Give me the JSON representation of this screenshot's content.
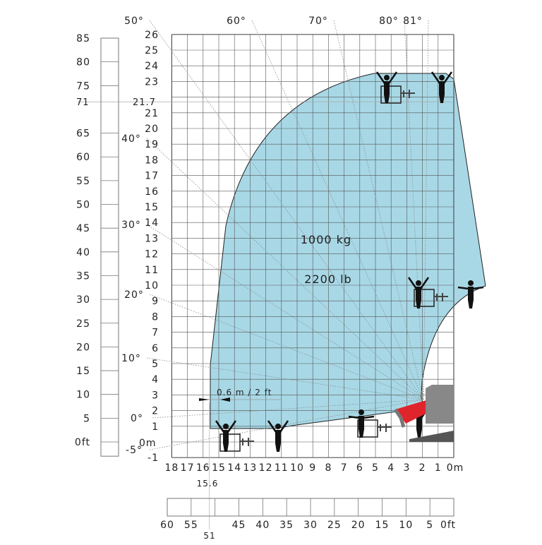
{
  "meter_y_labels": [
    "26",
    "25",
    "24",
    "23",
    "21",
    "20",
    "19",
    "18",
    "17",
    "16",
    "15",
    "14",
    "13",
    "12",
    "11",
    "10",
    "9",
    "8",
    "7",
    "6",
    "5",
    "4",
    "3",
    "2",
    "1",
    "-1"
  ],
  "meter_y_values": [
    26,
    25,
    24,
    23,
    21,
    20,
    19,
    18,
    17,
    16,
    15,
    14,
    13,
    12,
    11,
    10,
    9,
    8,
    7,
    6,
    5,
    4,
    3,
    2,
    1,
    -1
  ],
  "max_height_m": "21.7",
  "max_height_ft": "71",
  "zero_m_label": "0m",
  "feet_y_labels": [
    "85",
    "80",
    "75",
    "65",
    "60",
    "55",
    "50",
    "45",
    "40",
    "35",
    "30",
    "25",
    "20",
    "15",
    "10",
    "5",
    "0ft"
  ],
  "feet_y_values": [
    85,
    80,
    75,
    65,
    60,
    55,
    50,
    45,
    40,
    35,
    30,
    25,
    20,
    15,
    10,
    5,
    0
  ],
  "meter_x_labels": [
    "18",
    "17",
    "16",
    "15",
    "14",
    "13",
    "12",
    "11",
    "10",
    "9",
    "8",
    "7",
    "6",
    "5",
    "4",
    "3",
    "2",
    "1",
    "0m"
  ],
  "meter_x_values": [
    18,
    17,
    16,
    15,
    14,
    13,
    12,
    11,
    10,
    9,
    8,
    7,
    6,
    5,
    4,
    3,
    2,
    1,
    0
  ],
  "max_reach_m": "15.6",
  "max_reach_ft": "51",
  "feet_x_labels": [
    "60",
    "55",
    "45",
    "40",
    "35",
    "30",
    "25",
    "20",
    "15",
    "10",
    "5",
    "0ft"
  ],
  "feet_x_values": [
    60,
    55,
    45,
    40,
    35,
    30,
    25,
    20,
    15,
    10,
    5,
    0
  ],
  "boom_angles": [
    {
      "label": "50°",
      "deg": 50
    },
    {
      "label": "60°",
      "deg": 60
    },
    {
      "label": "70°",
      "deg": 70
    },
    {
      "label": "80°",
      "deg": 80
    },
    {
      "label": "81°",
      "deg": 81
    },
    {
      "label": "40°",
      "deg": 40
    },
    {
      "label": "30°",
      "deg": 30
    },
    {
      "label": "20°",
      "deg": 20
    },
    {
      "label": "10°",
      "deg": 10
    },
    {
      "label": "0°",
      "deg": 0
    },
    {
      "label": "-5°",
      "deg": -5
    }
  ],
  "load_kg": "1000 kg",
  "load_lb": "2200 lb",
  "offset_label": "0.6 m / 2 ft",
  "colors": {
    "envelope": "#a8d8e6",
    "grid": "#555555",
    "machine": "#e0242b"
  }
}
